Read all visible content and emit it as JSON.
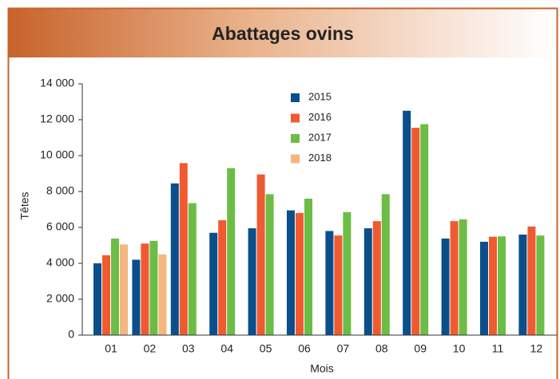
{
  "chart_data": {
    "type": "bar",
    "title": "Abattages ovins",
    "x_label": "Mois",
    "y_label": "Têtes",
    "categories": [
      "01",
      "02",
      "03",
      "04",
      "05",
      "06",
      "07",
      "08",
      "09",
      "10",
      "11",
      "12"
    ],
    "series": [
      {
        "name": "2015",
        "color": "#0a4f8c",
        "values": [
          4000,
          4200,
          8450,
          5700,
          5950,
          6950,
          5800,
          5950,
          12500,
          5380,
          5200,
          5600
        ]
      },
      {
        "name": "2016",
        "color": "#f05a30",
        "values": [
          4450,
          5100,
          9580,
          6400,
          8950,
          6800,
          5550,
          6350,
          11550,
          6350,
          5480,
          6050
        ]
      },
      {
        "name": "2017",
        "color": "#6cbd45",
        "values": [
          5380,
          5250,
          7350,
          9300,
          7850,
          7600,
          6850,
          7850,
          11750,
          6450,
          5500,
          5550
        ]
      },
      {
        "name": "2018",
        "color": "#f3b77f",
        "values": [
          5050,
          4500,
          null,
          null,
          null,
          null,
          null,
          null,
          null,
          null,
          null,
          null
        ]
      }
    ],
    "ylim": [
      0,
      14000
    ],
    "yticks": [
      0,
      {
        "value": 2000,
        "label": "2 000"
      },
      {
        "value": 4000,
        "label": "4 000"
      },
      {
        "value": 6000,
        "label": "6 000"
      },
      {
        "value": 8000,
        "label": "8 000"
      },
      {
        "value": 10000,
        "label": "10 000"
      },
      {
        "value": 12000,
        "label": "12 000"
      },
      {
        "value": 14000,
        "label": "14 000"
      }
    ],
    "grid": false,
    "legend": "top"
  }
}
